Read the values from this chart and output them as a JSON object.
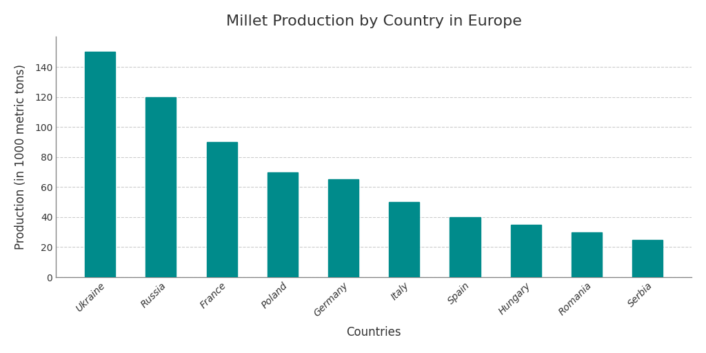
{
  "countries": [
    "Ukraine",
    "Russia",
    "France",
    "Poland",
    "Germany",
    "Italy",
    "Spain",
    "Hungary",
    "Romania",
    "Serbia"
  ],
  "values": [
    150,
    120,
    90,
    70,
    65,
    50,
    40,
    35,
    30,
    25
  ],
  "bar_color": "#008b8b",
  "title": "Millet Production by Country in Europe",
  "xlabel": "Countries",
  "ylabel": "Production (in 1000 metric tons)",
  "ylim": [
    0,
    160
  ],
  "yticks": [
    0,
    20,
    40,
    60,
    80,
    100,
    120,
    140
  ],
  "title_fontsize": 16,
  "label_fontsize": 12,
  "tick_fontsize": 10,
  "background_color": "#ffffff",
  "grid_color": "#cccccc",
  "left_spine_color": "#888888"
}
